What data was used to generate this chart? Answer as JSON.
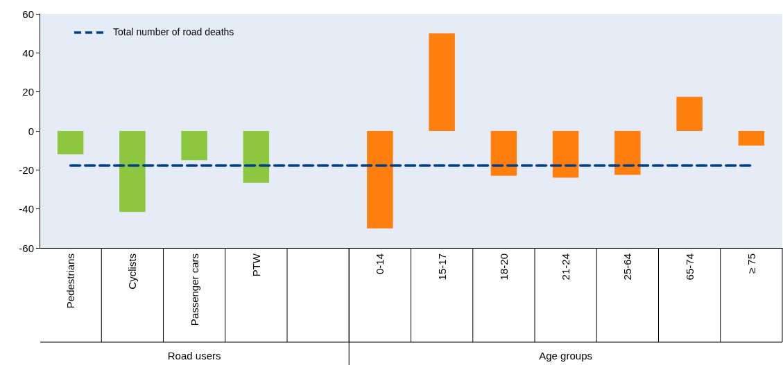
{
  "chart_data": {
    "type": "bar",
    "categories": [
      "Pedestrians",
      "Cyclists",
      "Passenger cars",
      "PTW",
      null,
      "0-14",
      "15-17",
      "18-20",
      "21-24",
      "25-64",
      "65-74",
      "≥ 75"
    ],
    "values": [
      -12,
      -41.5,
      -15,
      -26.5,
      null,
      -50,
      50,
      -23,
      -24,
      -22.5,
      17.5,
      -7.5
    ],
    "colors": [
      "#8dc63f",
      "#8dc63f",
      "#8dc63f",
      "#8dc63f",
      null,
      "#ff7f0e",
      "#ff7f0e",
      "#ff7f0e",
      "#ff7f0e",
      "#ff7f0e",
      "#ff7f0e",
      "#ff7f0e"
    ],
    "ylim": [
      -60,
      60
    ],
    "yticks": [
      -60,
      -40,
      -20,
      0,
      20,
      40,
      60
    ],
    "grid": false,
    "legend": "top left",
    "ref_lines": [
      {
        "axis": "y",
        "value": -17.5,
        "label": "Total number of road deaths",
        "color": "#003f8a",
        "line_style": "dashed"
      }
    ],
    "annotations": [
      "Road users",
      "Age groups"
    ]
  }
}
